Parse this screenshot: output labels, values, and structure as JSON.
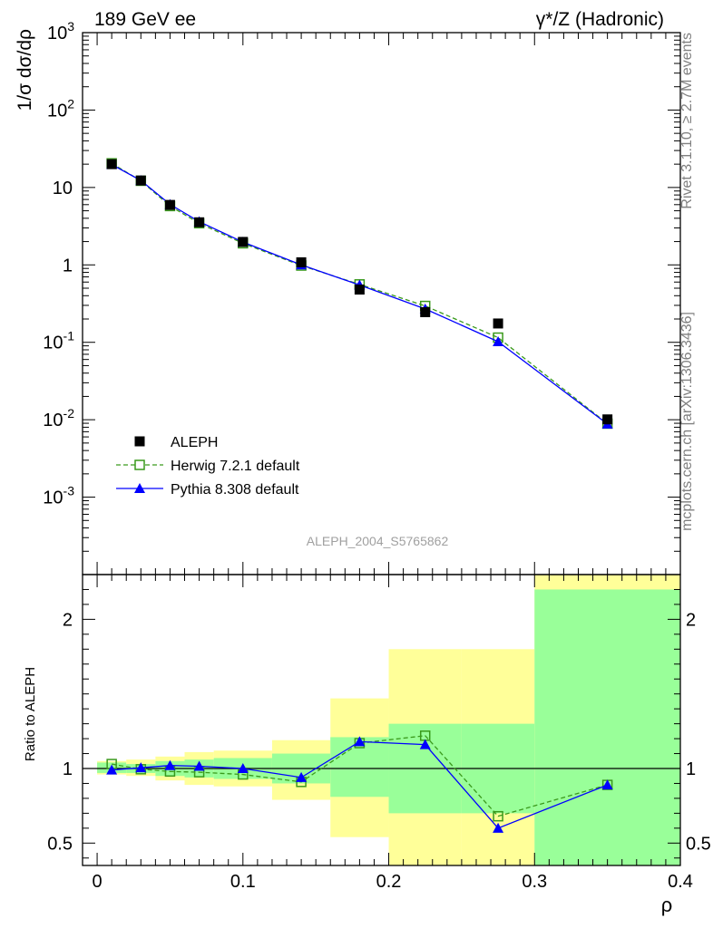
{
  "chart_data": [
    {
      "panel": "main",
      "type": "scatter",
      "title_left": "189 GeV ee",
      "title_right": "γ*/Z (Hadronic)",
      "ylabel": "1/σ dσ/dρ",
      "y_scale": "log",
      "ylim": [
        0.0001,
        1000
      ],
      "xlim": [
        -0.01,
        0.4
      ],
      "grid": false,
      "legend_position": "lower-left",
      "y_tick_labels": [
        "10^-3",
        "10^-2",
        "10^-1",
        "1",
        "10",
        "10^2",
        "10^3"
      ],
      "analysis_label": "ALEPH_2004_S5765862",
      "x": [
        0.01,
        0.03,
        0.05,
        0.07,
        0.1,
        0.14,
        0.18,
        0.225,
        0.275,
        0.35
      ],
      "series": [
        {
          "name": "ALEPH",
          "style": "filled-square",
          "color": "#000000",
          "values": [
            20.0,
            12.3,
            5.95,
            3.55,
            1.98,
            1.08,
            0.48,
            0.245,
            0.175,
            0.0101
          ]
        },
        {
          "name": "Herwig 7.2.1 default",
          "style": "open-square-dashed",
          "color": "#3a9a1c",
          "values": [
            20.5,
            12.2,
            5.75,
            3.45,
            1.9,
            0.98,
            0.56,
            0.295,
            0.115,
            0.0089
          ]
        },
        {
          "name": "Pythia 8.308 default",
          "style": "triangle-solid",
          "color": "#0000ff",
          "values": [
            19.8,
            12.3,
            6.05,
            3.62,
            1.97,
            1.0,
            0.55,
            0.27,
            0.102,
            0.0088
          ]
        }
      ]
    },
    {
      "panel": "ratio",
      "type": "line",
      "ylabel": "Ratio to ALEPH",
      "xlabel": "ρ",
      "ylim": [
        0.35,
        2.3
      ],
      "xlim": [
        -0.01,
        0.4
      ],
      "y_tick_labels": [
        "0.5",
        "1",
        "2"
      ],
      "x_tick_labels": [
        "0",
        "0.1",
        "0.2",
        "0.3",
        "0.4"
      ],
      "bins": [
        {
          "lo": 0.0,
          "hi": 0.02,
          "band_inner": [
            0.97,
            1.04
          ],
          "band_outer": [
            0.96,
            1.05
          ]
        },
        {
          "lo": 0.02,
          "hi": 0.04,
          "band_inner": [
            0.97,
            1.03
          ],
          "band_outer": [
            0.95,
            1.06
          ]
        },
        {
          "lo": 0.04,
          "hi": 0.06,
          "band_inner": [
            0.95,
            1.05
          ],
          "band_outer": [
            0.92,
            1.08
          ]
        },
        {
          "lo": 0.06,
          "hi": 0.08,
          "band_inner": [
            0.94,
            1.06
          ],
          "band_outer": [
            0.89,
            1.11
          ]
        },
        {
          "lo": 0.08,
          "hi": 0.12,
          "band_inner": [
            0.93,
            1.07
          ],
          "band_outer": [
            0.88,
            1.12
          ]
        },
        {
          "lo": 0.12,
          "hi": 0.16,
          "band_inner": [
            0.9,
            1.1
          ],
          "band_outer": [
            0.79,
            1.19
          ]
        },
        {
          "lo": 0.16,
          "hi": 0.2,
          "band_inner": [
            0.81,
            1.21
          ],
          "band_outer": [
            0.54,
            1.47
          ]
        },
        {
          "lo": 0.2,
          "hi": 0.25,
          "band_inner": [
            0.7,
            1.3
          ],
          "band_outer": [
            0.35,
            1.8
          ]
        },
        {
          "lo": 0.25,
          "hi": 0.3,
          "band_inner": [
            0.7,
            1.3
          ],
          "band_outer": [
            0.35,
            1.8
          ]
        },
        {
          "lo": 0.3,
          "hi": 0.4,
          "band_inner": [
            0.35,
            2.2
          ],
          "band_outer": [
            0.35,
            2.3
          ]
        }
      ],
      "band_colors": {
        "inner": "#99ff99",
        "outer": "#ffff99"
      },
      "x": [
        0.01,
        0.03,
        0.05,
        0.07,
        0.1,
        0.14,
        0.18,
        0.225,
        0.275,
        0.35
      ],
      "series": [
        {
          "name": "Herwig 7.2.1 default",
          "style": "open-square-dashed",
          "color": "#3a9a1c",
          "values": [
            1.03,
            0.995,
            0.98,
            0.975,
            0.96,
            0.91,
            1.17,
            1.22,
            0.68,
            0.89
          ]
        },
        {
          "name": "Pythia 8.308 default",
          "style": "triangle-solid",
          "color": "#0000ff",
          "values": [
            0.99,
            1.005,
            1.02,
            1.015,
            1.0,
            0.94,
            1.18,
            1.16,
            0.6,
            0.89
          ]
        }
      ]
    }
  ],
  "side_text": {
    "rivet": "Rivet 3.1.10, ≥ 2.7M events",
    "mcplots": "mcplots.cern.ch [arXiv:1306.3436]"
  }
}
